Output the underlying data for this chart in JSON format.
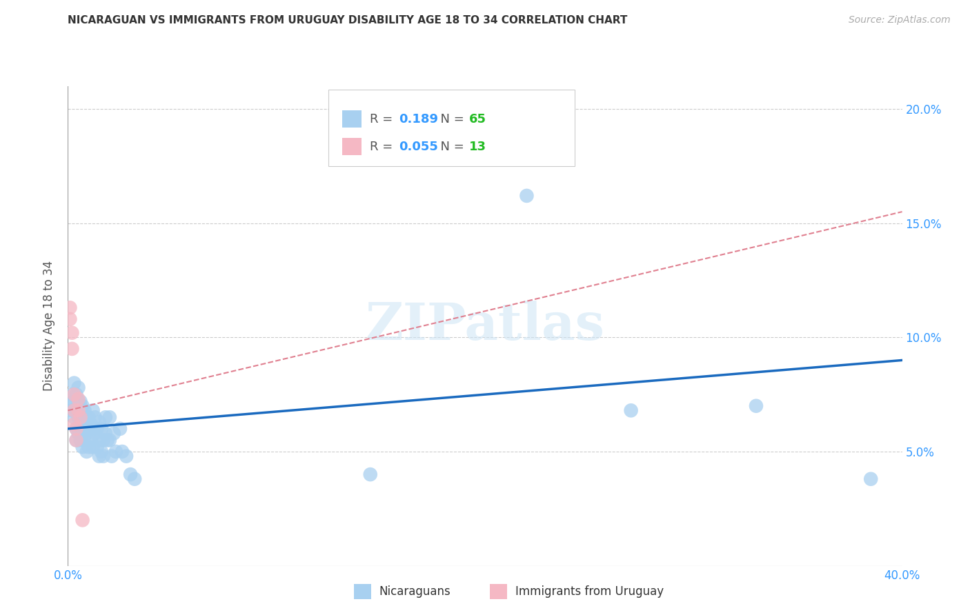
{
  "title": "NICARAGUAN VS IMMIGRANTS FROM URUGUAY DISABILITY AGE 18 TO 34 CORRELATION CHART",
  "source": "Source: ZipAtlas.com",
  "ylabel": "Disability Age 18 to 34",
  "xlim": [
    0.0,
    0.4
  ],
  "ylim": [
    0.0,
    0.21
  ],
  "xticks": [
    0.0,
    0.05,
    0.1,
    0.15,
    0.2,
    0.25,
    0.3,
    0.35,
    0.4
  ],
  "yticks": [
    0.0,
    0.05,
    0.1,
    0.15,
    0.2
  ],
  "xtick_labels": [
    "0.0%",
    "",
    "",
    "",
    "",
    "",
    "",
    "",
    "40.0%"
  ],
  "ytick_labels_right": [
    "",
    "5.0%",
    "10.0%",
    "15.0%",
    "20.0%"
  ],
  "blue_R": 0.189,
  "blue_N": 65,
  "pink_R": 0.055,
  "pink_N": 13,
  "blue_color": "#a8d0f0",
  "pink_color": "#f5b8c4",
  "blue_line_color": "#1a6abf",
  "pink_line_color": "#e08090",
  "watermark": "ZIPatlas",
  "legend_label_blue": "Nicaraguans",
  "legend_label_pink": "Immigrants from Uruguay",
  "blue_x": [
    0.001,
    0.002,
    0.002,
    0.003,
    0.003,
    0.003,
    0.004,
    0.004,
    0.004,
    0.004,
    0.005,
    0.005,
    0.005,
    0.005,
    0.006,
    0.006,
    0.006,
    0.006,
    0.007,
    0.007,
    0.007,
    0.007,
    0.008,
    0.008,
    0.008,
    0.009,
    0.009,
    0.009,
    0.01,
    0.01,
    0.01,
    0.011,
    0.011,
    0.012,
    0.012,
    0.012,
    0.013,
    0.013,
    0.014,
    0.014,
    0.015,
    0.015,
    0.015,
    0.016,
    0.016,
    0.017,
    0.017,
    0.018,
    0.018,
    0.019,
    0.02,
    0.02,
    0.021,
    0.022,
    0.023,
    0.025,
    0.026,
    0.028,
    0.03,
    0.032,
    0.145,
    0.22,
    0.27,
    0.33,
    0.385
  ],
  "blue_y": [
    0.07,
    0.075,
    0.068,
    0.08,
    0.072,
    0.065,
    0.075,
    0.068,
    0.06,
    0.055,
    0.078,
    0.072,
    0.065,
    0.058,
    0.072,
    0.065,
    0.06,
    0.055,
    0.07,
    0.063,
    0.058,
    0.052,
    0.068,
    0.062,
    0.055,
    0.065,
    0.058,
    0.05,
    0.065,
    0.06,
    0.052,
    0.062,
    0.055,
    0.06,
    0.068,
    0.052,
    0.065,
    0.058,
    0.06,
    0.052,
    0.063,
    0.055,
    0.048,
    0.06,
    0.05,
    0.055,
    0.048,
    0.065,
    0.058,
    0.055,
    0.065,
    0.055,
    0.048,
    0.058,
    0.05,
    0.06,
    0.05,
    0.048,
    0.04,
    0.038,
    0.04,
    0.162,
    0.068,
    0.07,
    0.038
  ],
  "pink_x": [
    0.001,
    0.001,
    0.002,
    0.002,
    0.003,
    0.003,
    0.003,
    0.004,
    0.004,
    0.005,
    0.005,
    0.006,
    0.007
  ],
  "pink_y": [
    0.113,
    0.108,
    0.102,
    0.095,
    0.075,
    0.068,
    0.062,
    0.06,
    0.055,
    0.073,
    0.068,
    0.065,
    0.02
  ],
  "blue_line_x0": 0.0,
  "blue_line_x1": 0.4,
  "blue_line_y0": 0.06,
  "blue_line_y1": 0.09,
  "pink_line_x0": 0.0,
  "pink_line_x1": 0.4,
  "pink_line_y0": 0.068,
  "pink_line_y1": 0.155
}
